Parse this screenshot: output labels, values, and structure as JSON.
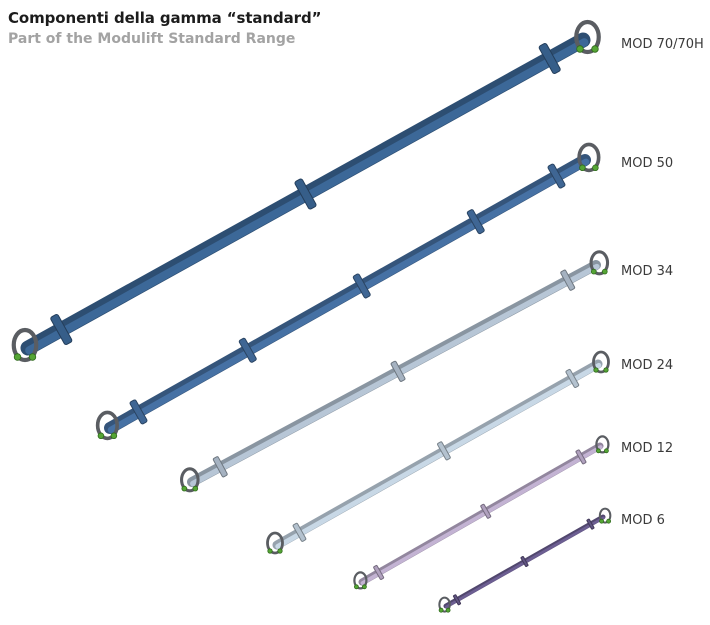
{
  "header": {
    "title": "Componenti della gamma “standard”",
    "subtitle": "Part of the Modulift Standard Range"
  },
  "models": [
    {
      "label": "MOD 70/70H",
      "color": "#3c6898"
    },
    {
      "label": "MOD 50",
      "color": "#4671a4"
    },
    {
      "label": "MOD 34",
      "color": "#b7c6d6"
    },
    {
      "label": "MOD 24",
      "color": "#c8d8e6"
    },
    {
      "label": "MOD 12",
      "color": "#c3b3d3"
    },
    {
      "label": "MOD 6",
      "color": "#6c5e92"
    }
  ],
  "colors": {
    "shackle": "#5a5d62",
    "bolt": "#55a535",
    "title": "#1c1c1c",
    "subtitle": "#a3a3a3"
  }
}
